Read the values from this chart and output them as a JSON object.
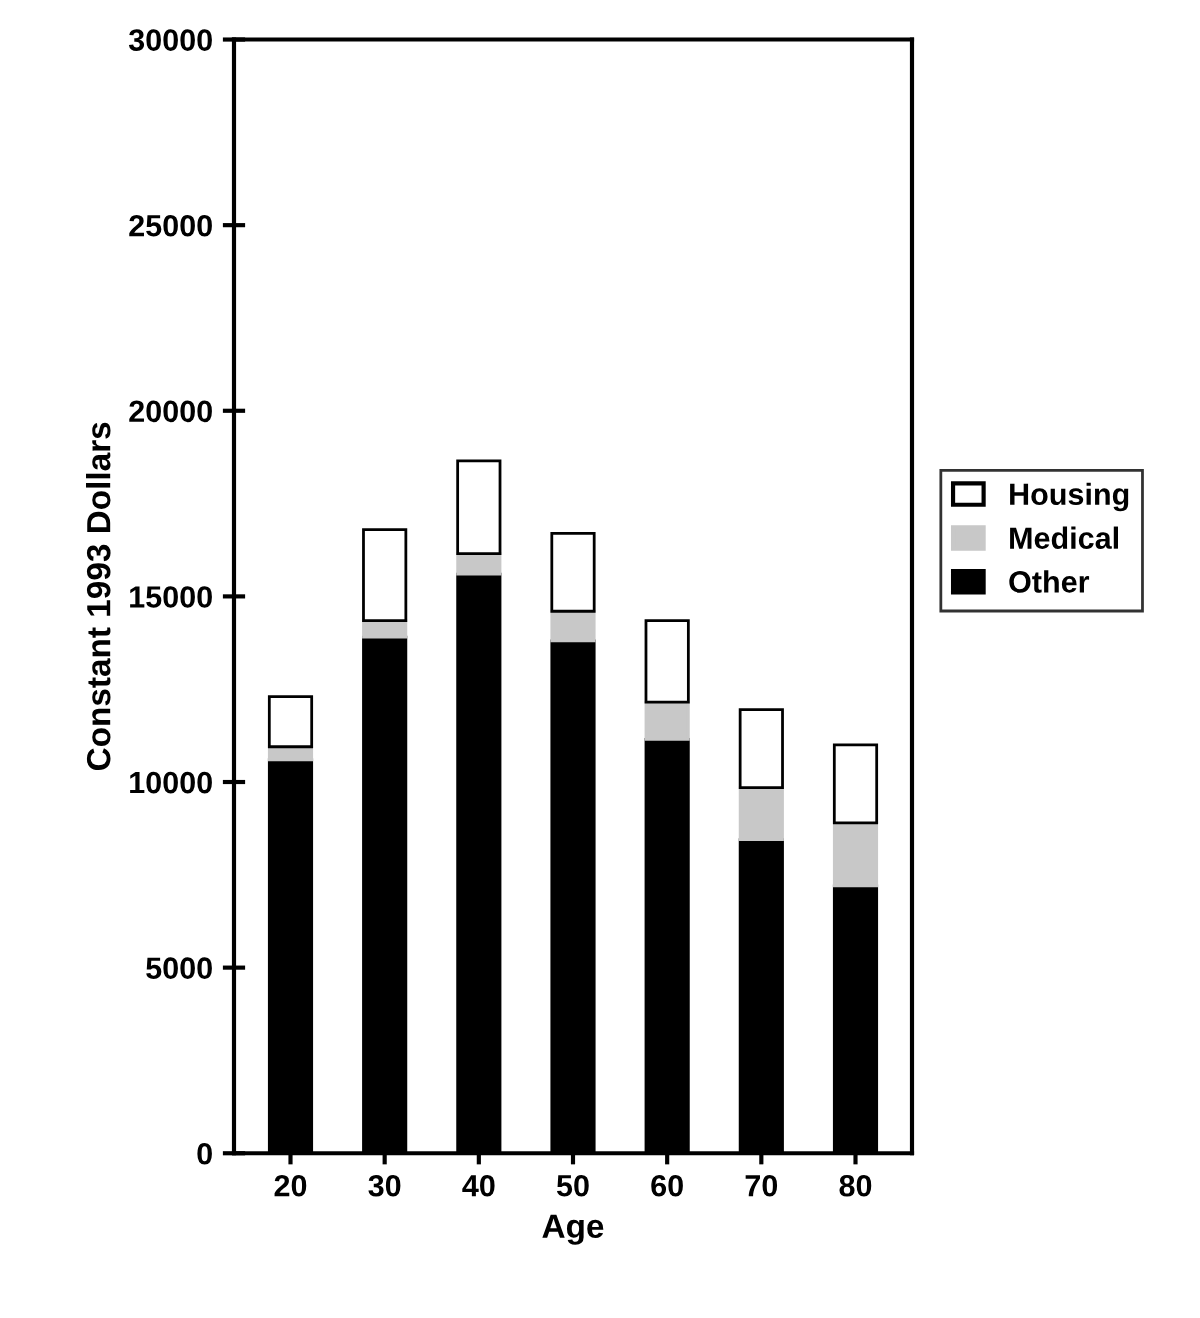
{
  "chart_data": {
    "type": "bar",
    "stacked": true,
    "xlabel": "Age",
    "ylabel": "Constant 1993 Dollars",
    "categories": [
      "20",
      "30",
      "40",
      "50",
      "60",
      "70",
      "80"
    ],
    "series": [
      {
        "name": "Other",
        "color": "#000000",
        "values": [
          10600,
          13900,
          15600,
          13800,
          11150,
          8450,
          7200
        ]
      },
      {
        "name": "Medical",
        "color": "#c8c8c8",
        "values": [
          350,
          450,
          550,
          800,
          1000,
          1400,
          1700
        ]
      },
      {
        "name": "Housing",
        "color": "#ffffff",
        "values": [
          1350,
          2450,
          2500,
          2100,
          2200,
          2100,
          2100
        ]
      }
    ],
    "ylim": [
      0,
      30000
    ],
    "yticks": [
      0,
      5000,
      10000,
      15000,
      20000,
      25000,
      30000
    ],
    "grid": false,
    "legend": "right"
  }
}
